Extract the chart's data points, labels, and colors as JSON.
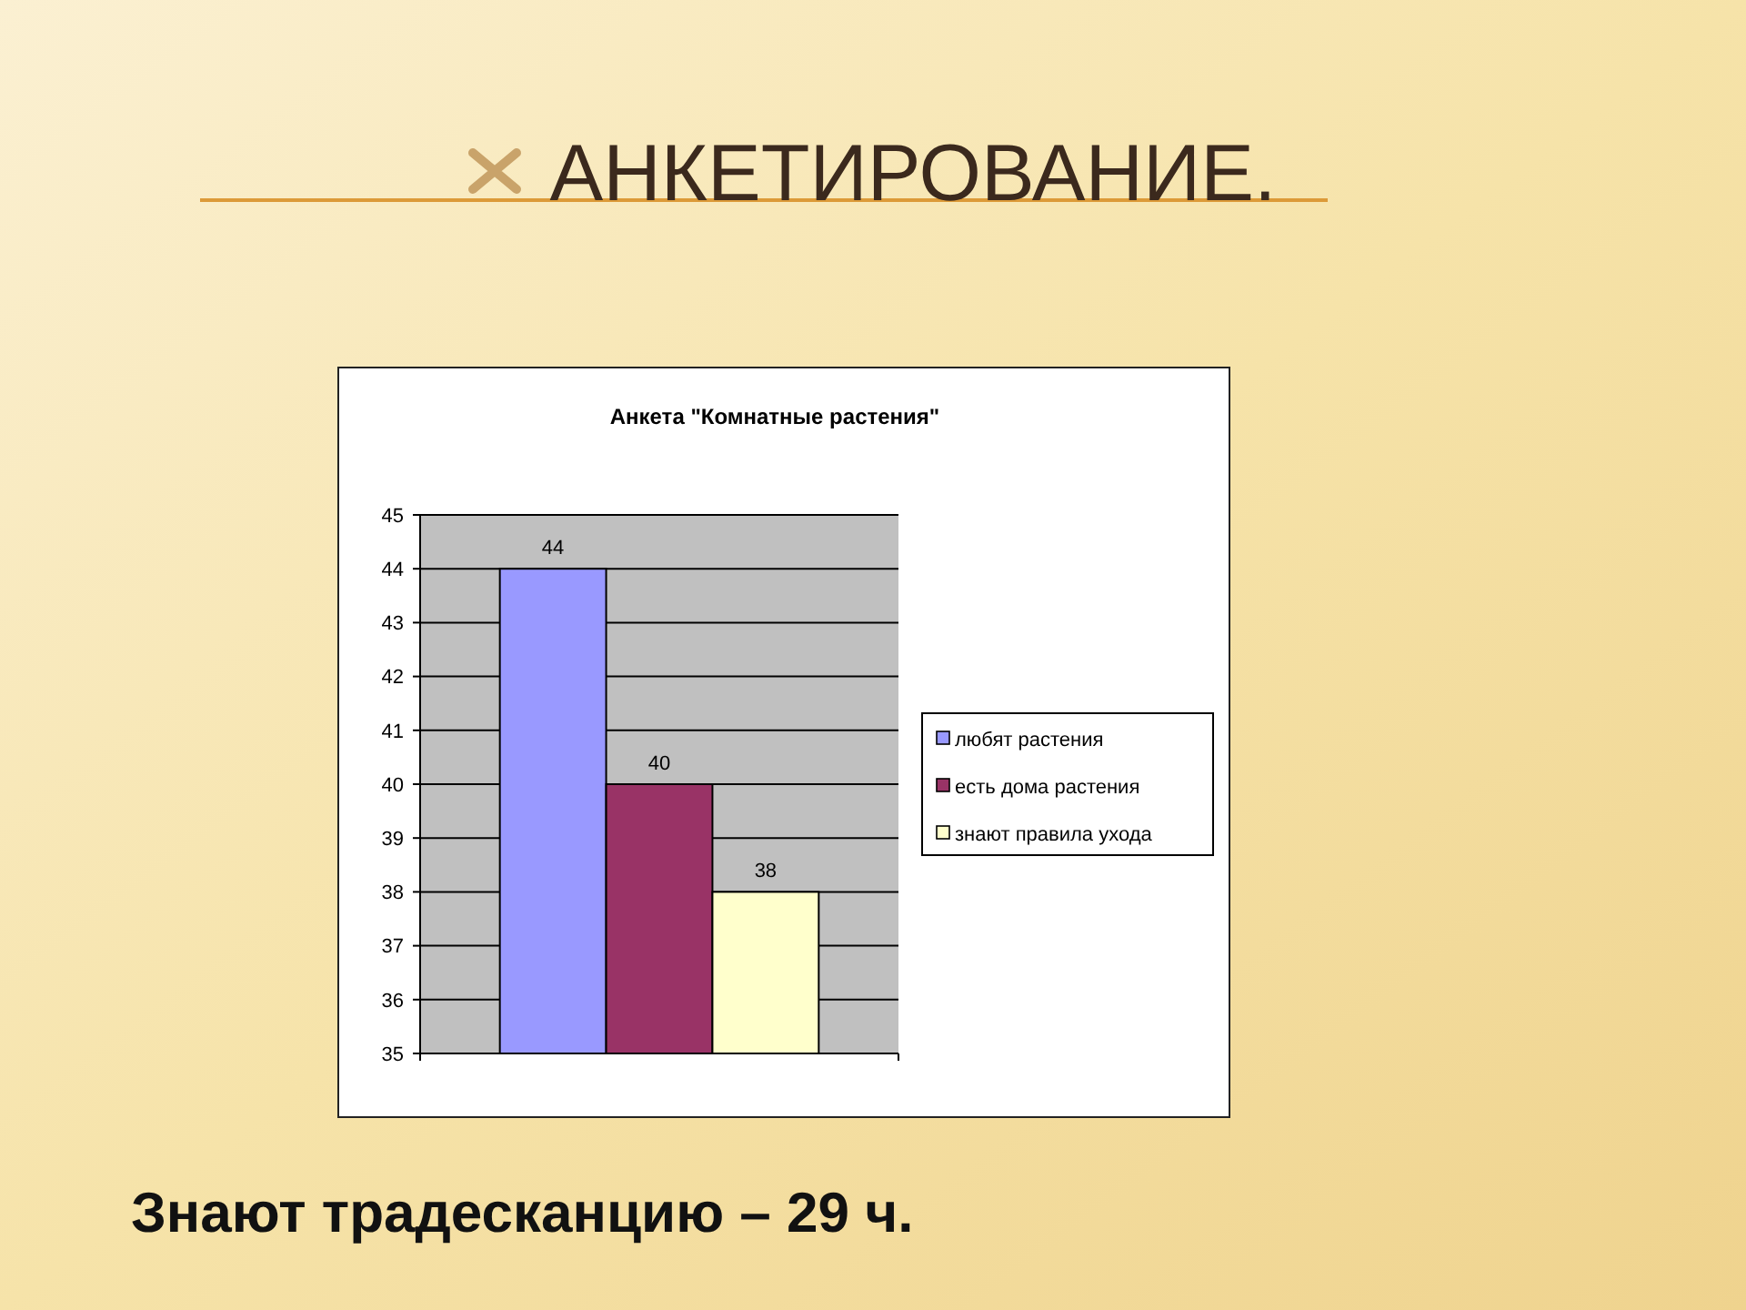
{
  "chart_data": {
    "type": "bar",
    "title": "АНКЕТИРОВАНИЕ.",
    "subtitle": "Анкета \"Комнатные растения\"",
    "categories": [
      null
    ],
    "series": [
      {
        "name": "любят растения",
        "color": "#9999ff",
        "values": [
          44
        ]
      },
      {
        "name": "есть дома растения",
        "color": "#993366",
        "values": [
          40
        ]
      },
      {
        "name": "знают правила ухода",
        "color": "#ffffcc",
        "values": [
          38
        ]
      }
    ],
    "ylim": [
      35,
      45
    ],
    "yticks": [
      35,
      36,
      37,
      38,
      39,
      40,
      41,
      42,
      43,
      44,
      45
    ],
    "grid": "y",
    "legend": "right",
    "data_labels": true,
    "annotations": [
      "Знают традесканцию – 29 ч."
    ]
  }
}
